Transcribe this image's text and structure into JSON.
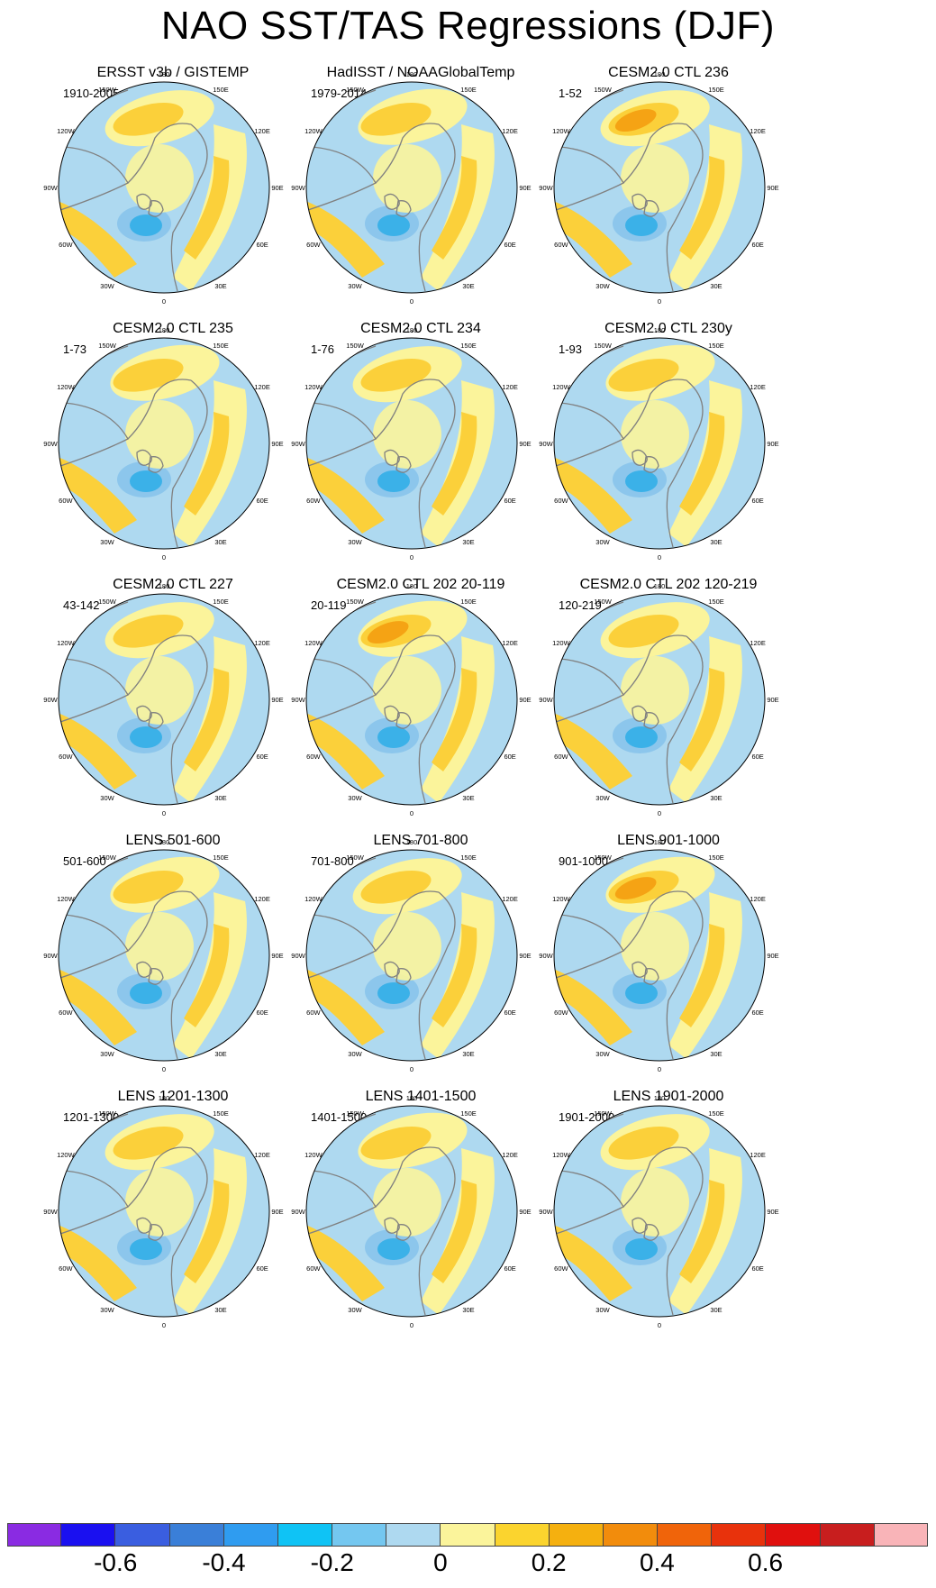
{
  "title": "NAO SST/TAS Regressions (DJF)",
  "colors": {
    "ocean_neutral": "#aed9f0",
    "land_light_pos": "#fbf49b",
    "pos_mid": "#fbd03a",
    "pos_strong": "#f5a314",
    "pos_stronger": "#f07a10",
    "pos_max": "#e23a12",
    "neg_light": "#8cc6ec",
    "neg_mid": "#3bb1e8",
    "neg_strong": "#3a7fd8",
    "coast": "#808080"
  },
  "longitude_labels": [
    "180",
    "150E",
    "120E",
    "90E",
    "60E",
    "30E",
    "0",
    "30W",
    "60W",
    "90W",
    "120W",
    "150W"
  ],
  "panels": [
    {
      "title": "ERSST v3b / GISTEMP",
      "period": "1910-2005"
    },
    {
      "title": "HadISST / NOAAGlobalTemp",
      "period": "1979-2014"
    },
    {
      "title": "CESM2.0 CTL 236",
      "period": "1-52"
    },
    {
      "title": "CESM2.0 CTL 235",
      "period": "1-73"
    },
    {
      "title": "CESM2.0 CTL 234",
      "period": "1-76"
    },
    {
      "title": "CESM2.0 CTL 230y",
      "period": "1-93"
    },
    {
      "title": "CESM2.0 CTL 227",
      "period": "43-142"
    },
    {
      "title": "CESM2.0 CTL 202 20-119",
      "period": "20-119"
    },
    {
      "title": "CESM2.0 CTL 202 120-219",
      "period": "120-219"
    },
    {
      "title": "LENS 501-600",
      "period": "501-600"
    },
    {
      "title": "LENS 701-800",
      "period": "701-800"
    },
    {
      "title": "LENS 901-1000",
      "period": "901-1000"
    },
    {
      "title": "LENS 1201-1300",
      "period": "1201-1300"
    },
    {
      "title": "LENS 1401-1500",
      "period": "1401-1500"
    },
    {
      "title": "LENS 1901-2000",
      "period": "1901-2000"
    }
  ],
  "colorbar": {
    "colors": [
      "#8a2be2",
      "#1a10f0",
      "#3a5ee0",
      "#3a7fd8",
      "#2f9cf0",
      "#0fc3f5",
      "#74c7f0",
      "#aed9f0",
      "#fbf49b",
      "#fbd42e",
      "#f5b00f",
      "#f28c0c",
      "#f0640a",
      "#e8320c",
      "#e0100e",
      "#c81e1e",
      "#f9b4b8"
    ],
    "labels": [
      "-0.6",
      "-0.4",
      "-0.2",
      "0",
      "0.2",
      "0.4",
      "0.6"
    ]
  }
}
